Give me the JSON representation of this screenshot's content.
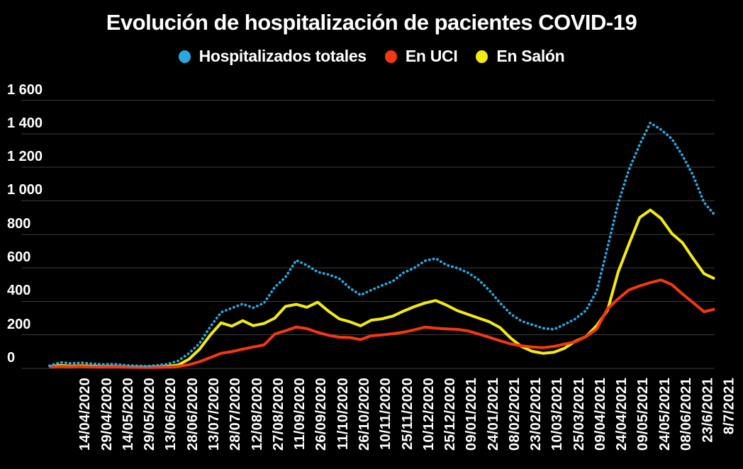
{
  "title": "Evolución de hospitalización de pacientes COVID-19",
  "chart_data": {
    "type": "line",
    "title": "Evolución de hospitalización de pacientes COVID-19",
    "background_color": "#000000",
    "grid_color": "#3b3b3b",
    "text_color": "#ffffff",
    "legend_position": "top",
    "grid": "horizontal-only",
    "ylim": [
      0,
      1600
    ],
    "y_ticks": [
      0,
      200,
      400,
      600,
      800,
      1000,
      1200,
      1400,
      1600
    ],
    "y_tick_labels": [
      "0",
      "200",
      "400",
      "600",
      "800",
      "1 000",
      "1 200",
      "1 400",
      "1 600"
    ],
    "x_tick_labels": [
      "14/04/2020",
      "29/04/2020",
      "14/05/2020",
      "29/05/2020",
      "13/06/2020",
      "28/06/2020",
      "13/07/2020",
      "28/07/2020",
      "12/08/2020",
      "27/08/2020",
      "11/09/2020",
      "26/09/2020",
      "11/10/2020",
      "26/10/2020",
      "10/11/2020",
      "25/11/2020",
      "10/12/2020",
      "25/12/2020",
      "09/01/2021",
      "24/01/2021",
      "08/02/2021",
      "23/02/2021",
      "10/03/2021",
      "25/03/2021",
      "09/04/2021",
      "24/04/2021",
      "09/05/2021",
      "24/05/2021",
      "08/06/2021",
      "23/6/2021",
      "8/7/2021"
    ],
    "sample_start_index": -1,
    "sample_step": 0.5,
    "series": [
      {
        "name": "En Salón",
        "color": "#F2EB12",
        "style": "solid",
        "values": [
          10,
          18,
          14,
          16,
          13,
          11,
          12,
          9,
          8,
          7,
          9,
          13,
          20,
          55,
          115,
          200,
          272,
          252,
          285,
          255,
          268,
          300,
          370,
          382,
          365,
          395,
          342,
          296,
          278,
          254,
          288,
          296,
          312,
          342,
          368,
          390,
          405,
          378,
          345,
          322,
          300,
          278,
          243,
          180,
          130,
          102,
          90,
          96,
          120,
          162,
          190,
          255,
          345,
          575,
          740,
          900,
          945,
          895,
          805,
          750,
          655,
          565,
          535
        ]
      },
      {
        "name": "En UCI",
        "color": "#F5380F",
        "style": "solid",
        "values": [
          8,
          12,
          10,
          12,
          9,
          8,
          9,
          7,
          6,
          5,
          6,
          8,
          12,
          22,
          40,
          65,
          90,
          100,
          115,
          128,
          140,
          205,
          225,
          247,
          237,
          215,
          198,
          186,
          184,
          172,
          195,
          200,
          207,
          216,
          230,
          246,
          240,
          236,
          233,
          224,
          205,
          185,
          165,
          146,
          135,
          128,
          124,
          131,
          145,
          158,
          190,
          235,
          355,
          415,
          468,
          492,
          512,
          528,
          500,
          444,
          392,
          338,
          354
        ]
      },
      {
        "name": "Hospitalizados totales",
        "color": "#29A8E0",
        "style": "dotted",
        "values": [
          16,
          36,
          30,
          34,
          28,
          24,
          26,
          20,
          16,
          14,
          18,
          26,
          45,
          90,
          150,
          250,
          335,
          360,
          385,
          362,
          390,
          485,
          545,
          645,
          615,
          575,
          560,
          537,
          479,
          438,
          468,
          495,
          520,
          571,
          599,
          642,
          656,
          617,
          599,
          571,
          529,
          465,
          390,
          324,
          282,
          261,
          240,
          233,
          262,
          295,
          346,
          460,
          720,
          985,
          1185,
          1335,
          1465,
          1425,
          1370,
          1270,
          1150,
          990,
          915
        ]
      }
    ],
    "legend_order": [
      "Hospitalizados totales",
      "En UCI",
      "En Salón"
    ]
  }
}
